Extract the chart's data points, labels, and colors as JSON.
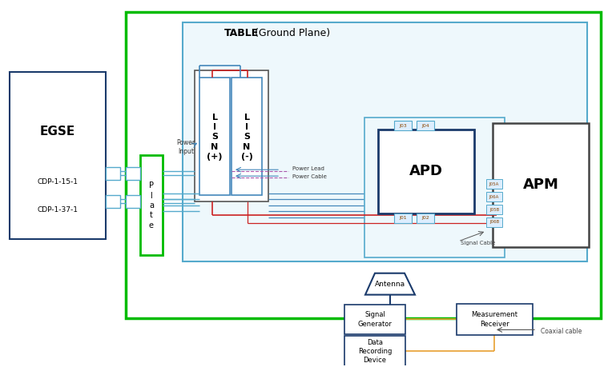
{
  "bg_color": "#ffffff",
  "green_border": "#00bb00",
  "light_blue_border": "#55aacc",
  "dark_blue": "#1a3a6b",
  "medium_blue": "#4488bb",
  "red": "#cc2222",
  "orange": "#e8a030",
  "purple_dashed": "#aa55aa",
  "table_label_bold": "TABLE",
  "table_label_normal": "(Ground Plane)",
  "egse_label": "EGSE",
  "plate_label": "P\nl\na\nt\ne",
  "lisn_plus_label": "L\nI\nS\nN\n(+)",
  "lisn_minus_label": "L\nI\nS\nN\n(-)",
  "apd_label": "APD",
  "apm_label": "APM",
  "antenna_label": "Antenna",
  "signal_gen_label": "Signal\nGenerator",
  "meas_recv_label": "Measurement\nReceiver",
  "data_rec_label": "Data\nRecording\nDevice",
  "cdp1": "CDP-1-15-1",
  "cdp2": "CDP-1-37-1",
  "power_input": "Power\nInput",
  "power_lead": "Power Lead",
  "power_cable": "Power Cable",
  "signal_cable": "Signal Cable",
  "coaxial_cable": "Coaxial cable"
}
